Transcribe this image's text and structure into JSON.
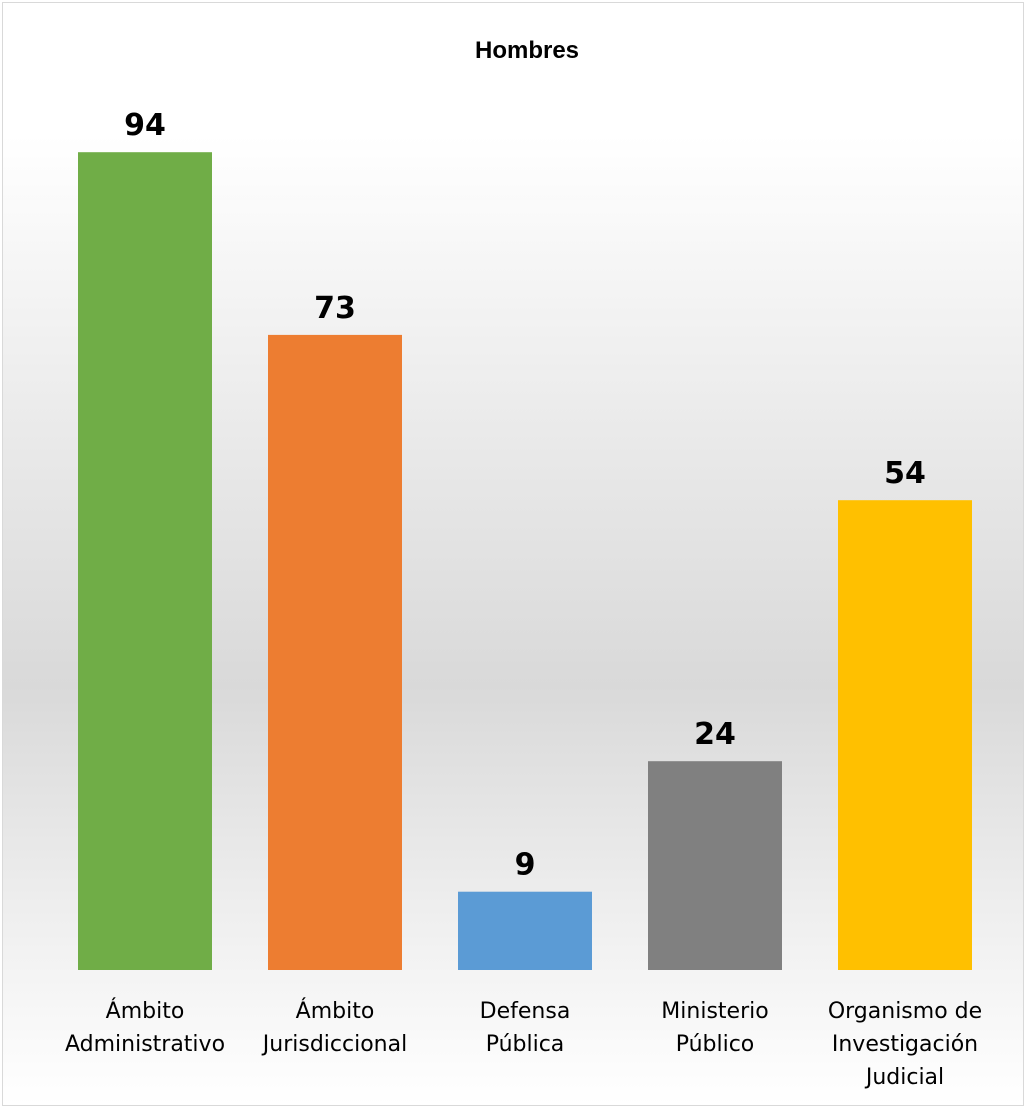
{
  "chart_data": {
    "type": "bar",
    "title": "Hombres",
    "categories": [
      [
        "Ámbito",
        "Administrativo"
      ],
      [
        "Ámbito",
        "Jurisdiccional"
      ],
      [
        "Defensa",
        "Pública"
      ],
      [
        "Ministerio",
        "Público"
      ],
      [
        "Organismo de",
        "Investigación",
        "Judicial"
      ]
    ],
    "values": [
      94,
      73,
      9,
      24,
      54
    ],
    "colors": [
      "#70ad47",
      "#ed7d31",
      "#5b9bd5",
      "#808080",
      "#ffc000"
    ],
    "data_labels": true,
    "xlabel": "",
    "ylabel": "",
    "ylim": [
      0,
      100
    ],
    "grid": false,
    "legend": "none"
  }
}
